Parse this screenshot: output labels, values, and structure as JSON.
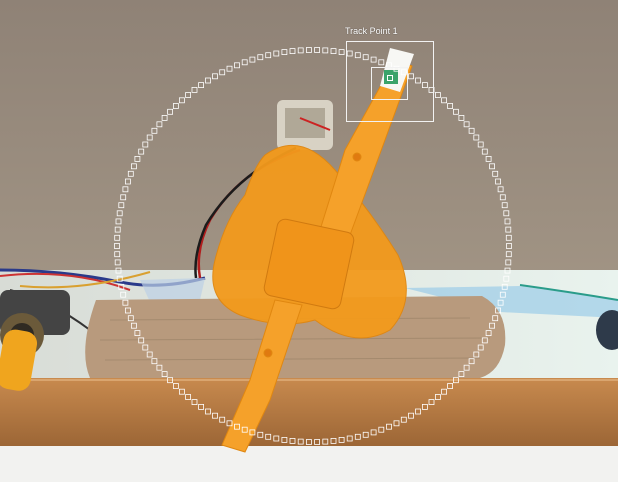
{
  "tracker": {
    "label": "Track Point 1",
    "path_marker_color": "#ffffff",
    "box_color": "#f2f2f2"
  },
  "scene": {
    "wall_color": "#9a8d7f",
    "shelf_color": "#b07845",
    "propeller_color": "#f39a1c",
    "wood_block_color": "#b89a7d"
  }
}
